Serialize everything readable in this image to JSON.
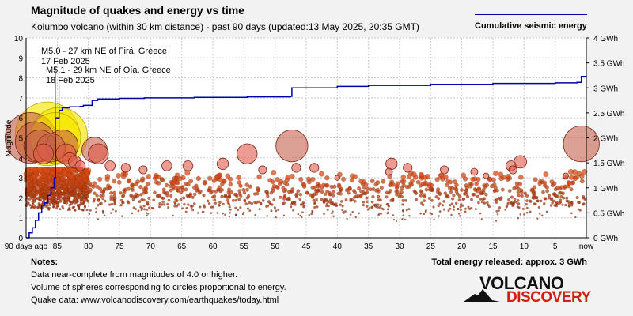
{
  "header": {
    "title": "Magnitude of quakes and energy vs time",
    "subtitle": "Kolumbo volcano (within 30 km distance) - past 90 days (updated:13 May 2025, 20:35 GMT)"
  },
  "legend": {
    "label": "Cumulative seismic energy",
    "line_color": "#0000aa"
  },
  "notes": {
    "title": "Notes:",
    "lines": [
      "Data near-complete from magnitudes of 4.0 or higher.",
      "Volume of spheres corresponding to circles proportional to energy.",
      "Quake data: www.volcanodiscovery.com/earthquakes/today.html"
    ]
  },
  "total_energy": "Total energy released: approx. 3 GWh",
  "logo": {
    "word1": "VOLCANO",
    "word2": "DISCOVERY"
  },
  "chart_data": {
    "type": "scatter",
    "xlabel_first_tick": "90 days ago",
    "xlabel_last_tick": "now",
    "x_ticks": [
      90,
      85,
      80,
      75,
      70,
      65,
      60,
      55,
      50,
      45,
      40,
      35,
      30,
      25,
      20,
      15,
      10,
      5,
      0
    ],
    "x_tick_labels": [
      "90 days ago",
      "85",
      "80",
      "75",
      "70",
      "65",
      "60",
      "55",
      "50",
      "45",
      "40",
      "35",
      "30",
      "25",
      "20",
      "15",
      "10",
      "5",
      "now"
    ],
    "xlim": [
      90,
      0
    ],
    "ylabel_left": "Magnitude",
    "ylim_left": [
      0,
      10
    ],
    "y_ticks_left": [
      0,
      1,
      2,
      3,
      4,
      5,
      6,
      7,
      8,
      9,
      10
    ],
    "ylim_right": [
      0,
      4
    ],
    "y_ticks_right": [
      0,
      0.5,
      1,
      1.5,
      2,
      2.5,
      3,
      3.5,
      4
    ],
    "y_tick_labels_right": [
      "0 GWh",
      "0.5 GWh",
      "1 GWh",
      "1.5 GWh",
      "2 GWh",
      "2.5 GWh",
      "3 GWh",
      "3.5 GWh",
      "4 GWh"
    ],
    "grid": true,
    "annotations": [
      {
        "line1": "M5.0 - 27 km NE of Firá, Greece",
        "line2": "17 Feb 2025",
        "days_ago": 85.3,
        "magnitude": 5.0
      },
      {
        "line1": "M5.1 - 29 km NE of Oía, Greece",
        "line2": "18 Feb 2025",
        "days_ago": 84.7,
        "magnitude": 5.1
      }
    ],
    "large_quakes": [
      {
        "days_ago": 89.3,
        "magnitude": 5.0
      },
      {
        "days_ago": 88.5,
        "magnitude": 4.8
      },
      {
        "days_ago": 87.8,
        "magnitude": 4.6
      },
      {
        "days_ago": 87.2,
        "magnitude": 4.2
      },
      {
        "days_ago": 86.6,
        "magnitude": 5.2
      },
      {
        "days_ago": 86.0,
        "magnitude": 4.5
      },
      {
        "days_ago": 85.3,
        "magnitude": 5.0
      },
      {
        "days_ago": 84.7,
        "magnitude": 5.1
      },
      {
        "days_ago": 84.2,
        "magnitude": 4.6
      },
      {
        "days_ago": 83.6,
        "magnitude": 4.2
      },
      {
        "days_ago": 83.0,
        "magnitude": 3.9
      },
      {
        "days_ago": 82.2,
        "magnitude": 3.8
      },
      {
        "days_ago": 81.3,
        "magnitude": 3.6
      },
      {
        "days_ago": 79.0,
        "magnitude": 4.4
      },
      {
        "days_ago": 78.4,
        "magnitude": 4.2
      },
      {
        "days_ago": 76.5,
        "magnitude": 3.6
      },
      {
        "days_ago": 74.0,
        "magnitude": 3.5
      },
      {
        "days_ago": 71.2,
        "magnitude": 3.4
      },
      {
        "days_ago": 67.4,
        "magnitude": 3.6
      },
      {
        "days_ago": 64.0,
        "magnitude": 3.6
      },
      {
        "days_ago": 58.4,
        "magnitude": 3.7
      },
      {
        "days_ago": 54.5,
        "magnitude": 4.2
      },
      {
        "days_ago": 52.0,
        "magnitude": 3.4
      },
      {
        "days_ago": 47.3,
        "magnitude": 4.6
      },
      {
        "days_ago": 46.6,
        "magnitude": 3.5
      },
      {
        "days_ago": 43.7,
        "magnitude": 3.5
      },
      {
        "days_ago": 40.0,
        "magnitude": 3.0
      },
      {
        "days_ago": 31.7,
        "magnitude": 3.3
      },
      {
        "days_ago": 31.3,
        "magnitude": 3.7
      },
      {
        "days_ago": 28.7,
        "magnitude": 3.5
      },
      {
        "days_ago": 22.8,
        "magnitude": 3.4
      },
      {
        "days_ago": 18.0,
        "magnitude": 3.3
      },
      {
        "days_ago": 16.1,
        "magnitude": 3.1
      },
      {
        "days_ago": 12.1,
        "magnitude": 3.6
      },
      {
        "days_ago": 11.8,
        "magnitude": 3.4
      },
      {
        "days_ago": 10.6,
        "magnitude": 3.8
      },
      {
        "days_ago": 3.3,
        "magnitude": 3.1
      },
      {
        "days_ago": 0.8,
        "magnitude": 4.7
      }
    ],
    "cumulative_energy_gwh": [
      [
        90,
        0.0
      ],
      [
        89.5,
        0.1
      ],
      [
        89,
        0.2
      ],
      [
        88.5,
        0.35
      ],
      [
        88,
        0.5
      ],
      [
        87.5,
        0.65
      ],
      [
        87,
        0.7
      ],
      [
        86.5,
        0.85
      ],
      [
        86,
        1.0
      ],
      [
        85.5,
        1.2
      ],
      [
        85.3,
        2.4
      ],
      [
        84.7,
        2.55
      ],
      [
        84.2,
        2.6
      ],
      [
        83,
        2.62
      ],
      [
        81.3,
        2.63
      ],
      [
        80.8,
        2.65
      ],
      [
        79.4,
        2.75
      ],
      [
        78.5,
        2.78
      ],
      [
        75,
        2.79
      ],
      [
        71,
        2.8
      ],
      [
        67,
        2.8
      ],
      [
        63,
        2.81
      ],
      [
        58,
        2.81
      ],
      [
        54.5,
        2.82
      ],
      [
        50,
        2.82
      ],
      [
        47.5,
        2.83
      ],
      [
        47.3,
        3.0
      ],
      [
        40,
        3.03
      ],
      [
        35,
        3.05
      ],
      [
        25,
        3.07
      ],
      [
        15,
        3.09
      ],
      [
        5,
        3.1
      ],
      [
        1.5,
        3.11
      ],
      [
        0.8,
        3.23
      ],
      [
        0,
        3.24
      ]
    ]
  }
}
